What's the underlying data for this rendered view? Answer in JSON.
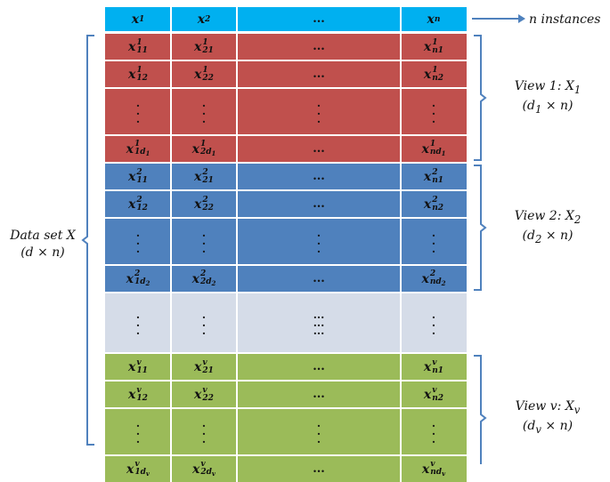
{
  "columns": [
    "1",
    "2",
    "...",
    "n"
  ],
  "header": {
    "cells": [
      {
        "base": "x",
        "sub": "1"
      },
      {
        "base": "x",
        "sub": "2"
      },
      {
        "dots": "..."
      },
      {
        "base": "x",
        "sub": "n"
      }
    ],
    "annotation": "n instances"
  },
  "colors": {
    "header": "#00B0F0",
    "view1": "#C0504D",
    "view2": "#4F81BD",
    "middle": "#D5DCE8",
    "viewv": "#9BBB59",
    "gridline": "#ffffff",
    "bracket": "#4F81BD"
  },
  "views": [
    {
      "key": "view1",
      "label_line1": "View 1: X",
      "label_sub1": "1",
      "label_line2_pre": "(d",
      "label_line2_sub": "1",
      "label_line2_post": " × n)",
      "rows": [
        [
          {
            "sup": "1",
            "sub": "11"
          },
          {
            "sup": "1",
            "sub": "21"
          },
          {
            "dots": "..."
          },
          {
            "sup": "1",
            "sub": "n1"
          }
        ],
        [
          {
            "sup": "1",
            "sub": "12"
          },
          {
            "sup": "1",
            "sub": "22"
          },
          {
            "dots": "..."
          },
          {
            "sup": "1",
            "sub": "n2"
          }
        ],
        "vdots",
        [
          {
            "sup": "1",
            "sub": "1d",
            "subsub": "1"
          },
          {
            "sup": "1",
            "sub": "2d",
            "subsub": "1"
          },
          {
            "dots": "..."
          },
          {
            "sup": "1",
            "sub": "nd",
            "subsub": "1"
          }
        ]
      ]
    },
    {
      "key": "view2",
      "label_line1": "View 2: X",
      "label_sub1": "2",
      "label_line2_pre": "(d",
      "label_line2_sub": "2",
      "label_line2_post": " × n)",
      "rows": [
        [
          {
            "sup": "2",
            "sub": "11"
          },
          {
            "sup": "2",
            "sub": "21"
          },
          {
            "dots": "..."
          },
          {
            "sup": "2",
            "sub": "n1"
          }
        ],
        [
          {
            "sup": "2",
            "sub": "12"
          },
          {
            "sup": "2",
            "sub": "22"
          },
          {
            "dots": "..."
          },
          {
            "sup": "2",
            "sub": "n2"
          }
        ],
        "vdots",
        [
          {
            "sup": "2",
            "sub": "1d",
            "subsub": "2"
          },
          {
            "sup": "2",
            "sub": "2d",
            "subsub": "2"
          },
          {
            "dots": "..."
          },
          {
            "sup": "2",
            "sub": "nd",
            "subsub": "2"
          }
        ]
      ]
    },
    {
      "key": "middle",
      "rows": [
        "vdots-mid"
      ]
    },
    {
      "key": "viewv",
      "label_line1": "View v: X",
      "label_sub1": "v",
      "label_line2_pre": "(d",
      "label_line2_sub": "v",
      "label_line2_post": " × n)",
      "rows": [
        [
          {
            "sup": "v",
            "sub": "11"
          },
          {
            "sup": "v",
            "sub": "21"
          },
          {
            "dots": "..."
          },
          {
            "sup": "v",
            "sub": "n1"
          }
        ],
        [
          {
            "sup": "v",
            "sub": "12"
          },
          {
            "sup": "v",
            "sub": "22"
          },
          {
            "dots": "..."
          },
          {
            "sup": "v",
            "sub": "n2"
          }
        ],
        "vdots",
        [
          {
            "sup": "v",
            "sub": "1d",
            "subsub": "v"
          },
          {
            "sup": "v",
            "sub": "2d",
            "subsub": "v"
          },
          {
            "dots": "..."
          },
          {
            "sup": "v",
            "sub": "nd",
            "subsub": "v"
          }
        ]
      ]
    }
  ],
  "dataset_label": {
    "line1": "Data set X",
    "line2": "(d × n)"
  }
}
